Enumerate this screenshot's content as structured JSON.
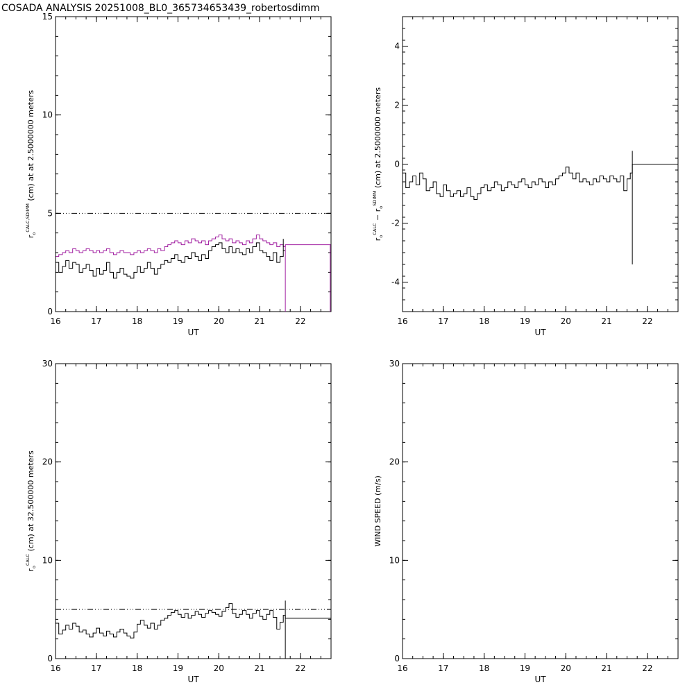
{
  "header": {
    "title": "COSADA ANALYSIS 20251008_BL0_365734653439_robertosdimm"
  },
  "colors": {
    "axis": "#000000",
    "series_black": "#000000",
    "series_magenta": "#a01ea0"
  },
  "chart_data": [
    {
      "type": "line",
      "xlabel": "UT",
      "ylabel_parts": {
        "main": "r",
        "sub": "o",
        "sup": "CALC,SDIMM",
        "rest": "(cm)  at  at 2.5000000 meters"
      },
      "xlim": [
        16,
        22.75
      ],
      "ylim": [
        0,
        15
      ],
      "xticks": [
        16,
        17,
        18,
        19,
        20,
        21,
        22
      ],
      "yticks": [
        0,
        5,
        10,
        15
      ],
      "reference_line": 5,
      "series": [
        {
          "color": "#a01ea0",
          "step": true,
          "x": [
            16.0,
            16.08,
            16.17,
            16.25,
            16.33,
            16.42,
            16.5,
            16.58,
            16.67,
            16.75,
            16.83,
            16.92,
            17.0,
            17.08,
            17.17,
            17.25,
            17.33,
            17.42,
            17.5,
            17.58,
            17.67,
            17.75,
            17.83,
            17.92,
            18.0,
            18.08,
            18.17,
            18.25,
            18.33,
            18.42,
            18.5,
            18.58,
            18.67,
            18.75,
            18.83,
            18.92,
            19.0,
            19.08,
            19.17,
            19.25,
            19.33,
            19.42,
            19.5,
            19.58,
            19.67,
            19.75,
            19.83,
            19.92,
            20.0,
            20.08,
            20.17,
            20.25,
            20.33,
            20.42,
            20.5,
            20.58,
            20.67,
            20.75,
            20.83,
            20.92,
            21.0,
            21.08,
            21.17,
            21.25,
            21.33,
            21.42,
            21.5,
            21.58,
            21.63,
            22.73
          ],
          "y": [
            2.8,
            2.9,
            3.0,
            3.1,
            3.0,
            3.2,
            3.1,
            3.0,
            3.1,
            3.2,
            3.1,
            3.0,
            3.1,
            3.0,
            3.1,
            3.2,
            3.0,
            2.9,
            3.0,
            3.1,
            3.0,
            3.0,
            2.9,
            3.0,
            3.1,
            3.0,
            3.1,
            3.2,
            3.1,
            3.0,
            3.2,
            3.1,
            3.3,
            3.4,
            3.5,
            3.6,
            3.5,
            3.4,
            3.6,
            3.5,
            3.7,
            3.6,
            3.5,
            3.6,
            3.4,
            3.6,
            3.7,
            3.8,
            3.9,
            3.7,
            3.6,
            3.7,
            3.5,
            3.6,
            3.5,
            3.4,
            3.6,
            3.5,
            3.7,
            3.9,
            3.7,
            3.6,
            3.5,
            3.4,
            3.5,
            3.3,
            3.4,
            3.3,
            3.4,
            3.4
          ]
        },
        {
          "color": "#000000",
          "step": true,
          "x": [
            16.0,
            16.08,
            16.17,
            16.25,
            16.33,
            16.42,
            16.5,
            16.58,
            16.67,
            16.75,
            16.83,
            16.92,
            17.0,
            17.08,
            17.17,
            17.25,
            17.33,
            17.42,
            17.5,
            17.58,
            17.67,
            17.75,
            17.83,
            17.92,
            18.0,
            18.08,
            18.17,
            18.25,
            18.33,
            18.42,
            18.5,
            18.58,
            18.67,
            18.75,
            18.83,
            18.92,
            19.0,
            19.08,
            19.17,
            19.25,
            19.33,
            19.42,
            19.5,
            19.58,
            19.67,
            19.75,
            19.83,
            19.92,
            20.0,
            20.08,
            20.17,
            20.25,
            20.33,
            20.42,
            20.5,
            20.58,
            20.67,
            20.75,
            20.83,
            20.92,
            21.0,
            21.08,
            21.17,
            21.25,
            21.33,
            21.42,
            21.5,
            21.58
          ],
          "y": [
            2.5,
            2.0,
            2.3,
            2.6,
            2.2,
            2.5,
            2.4,
            2.0,
            2.2,
            2.4,
            2.1,
            1.8,
            2.2,
            1.9,
            2.1,
            2.5,
            2.0,
            1.7,
            2.0,
            2.2,
            1.9,
            1.8,
            1.7,
            2.0,
            2.3,
            2.0,
            2.2,
            2.5,
            2.2,
            1.9,
            2.2,
            2.4,
            2.6,
            2.5,
            2.7,
            2.9,
            2.6,
            2.5,
            2.8,
            2.7,
            3.0,
            2.8,
            2.6,
            2.9,
            2.7,
            3.1,
            3.3,
            3.4,
            3.5,
            3.2,
            3.0,
            3.3,
            3.0,
            3.2,
            3.0,
            2.9,
            3.2,
            3.0,
            3.3,
            3.5,
            3.1,
            3.0,
            2.8,
            2.6,
            3.0,
            2.5,
            2.8,
            3.1
          ]
        }
      ]
    },
    {
      "type": "line",
      "xlabel": "UT",
      "ylabel_parts": {
        "main": "r",
        "sub": "o",
        "sup": "CALC",
        "dash": "− r",
        "sub2": "o",
        "sup2": "SDIMM",
        "rest": "(cm)  at 2.5000000 meters"
      },
      "xlim": [
        16,
        22.75
      ],
      "ylim": [
        -5,
        5
      ],
      "xticks": [
        16,
        17,
        18,
        19,
        20,
        21,
        22
      ],
      "yticks": [
        -4,
        -2,
        0,
        2,
        4
      ],
      "series": [
        {
          "color": "#000000",
          "step": true,
          "x": [
            16.0,
            16.08,
            16.17,
            16.25,
            16.33,
            16.42,
            16.5,
            16.58,
            16.67,
            16.75,
            16.83,
            16.92,
            17.0,
            17.08,
            17.17,
            17.25,
            17.33,
            17.42,
            17.5,
            17.58,
            17.67,
            17.75,
            17.83,
            17.92,
            18.0,
            18.08,
            18.17,
            18.25,
            18.33,
            18.42,
            18.5,
            18.58,
            18.67,
            18.75,
            18.83,
            18.92,
            19.0,
            19.08,
            19.17,
            19.25,
            19.33,
            19.42,
            19.5,
            19.58,
            19.67,
            19.75,
            19.83,
            19.92,
            20.0,
            20.08,
            20.17,
            20.25,
            20.33,
            20.42,
            20.5,
            20.58,
            20.67,
            20.75,
            20.83,
            20.92,
            21.0,
            21.08,
            21.17,
            21.25,
            21.33,
            21.42,
            21.5,
            21.58,
            21.63,
            22.73
          ],
          "y": [
            -0.3,
            -0.8,
            -0.6,
            -0.4,
            -0.7,
            -0.3,
            -0.5,
            -0.9,
            -0.8,
            -0.6,
            -1.0,
            -1.1,
            -0.7,
            -0.9,
            -1.1,
            -1.0,
            -0.9,
            -1.1,
            -1.0,
            -0.8,
            -1.1,
            -1.2,
            -1.0,
            -0.8,
            -0.7,
            -0.9,
            -0.8,
            -0.6,
            -0.7,
            -0.9,
            -0.8,
            -0.6,
            -0.7,
            -0.8,
            -0.6,
            -0.5,
            -0.7,
            -0.8,
            -0.6,
            -0.7,
            -0.5,
            -0.6,
            -0.8,
            -0.6,
            -0.7,
            -0.5,
            -0.4,
            -0.3,
            -0.1,
            -0.3,
            -0.5,
            -0.3,
            -0.6,
            -0.5,
            -0.6,
            -0.7,
            -0.5,
            -0.6,
            -0.4,
            -0.5,
            -0.6,
            -0.4,
            -0.5,
            -0.6,
            -0.4,
            -0.9,
            -0.5,
            -0.3,
            0.0,
            0.0
          ]
        }
      ]
    },
    {
      "type": "line",
      "xlabel": "UT",
      "ylabel_parts": {
        "main": "r",
        "sub": "o",
        "sup": "CALC",
        "rest": "(cm)  at 32.500000 meters"
      },
      "xlim": [
        16,
        22.75
      ],
      "ylim": [
        0,
        30
      ],
      "xticks": [
        16,
        17,
        18,
        19,
        20,
        21,
        22
      ],
      "yticks": [
        0,
        10,
        20,
        30
      ],
      "reference_line": 5,
      "series": [
        {
          "color": "#000000",
          "step": true,
          "x": [
            16.0,
            16.08,
            16.17,
            16.25,
            16.33,
            16.42,
            16.5,
            16.58,
            16.67,
            16.75,
            16.83,
            16.92,
            17.0,
            17.08,
            17.17,
            17.25,
            17.33,
            17.42,
            17.5,
            17.58,
            17.67,
            17.75,
            17.83,
            17.92,
            18.0,
            18.08,
            18.17,
            18.25,
            18.33,
            18.42,
            18.5,
            18.58,
            18.67,
            18.75,
            18.83,
            18.92,
            19.0,
            19.08,
            19.17,
            19.25,
            19.33,
            19.42,
            19.5,
            19.58,
            19.67,
            19.75,
            19.83,
            19.92,
            20.0,
            20.08,
            20.17,
            20.25,
            20.33,
            20.42,
            20.5,
            20.58,
            20.67,
            20.75,
            20.83,
            20.92,
            21.0,
            21.08,
            21.17,
            21.25,
            21.33,
            21.42,
            21.5,
            21.58,
            21.63,
            22.73
          ],
          "y": [
            3.6,
            2.5,
            2.9,
            3.4,
            3.0,
            3.6,
            3.3,
            2.7,
            2.9,
            2.5,
            2.2,
            2.6,
            3.1,
            2.6,
            2.3,
            2.8,
            2.5,
            2.2,
            2.7,
            3.0,
            2.6,
            2.3,
            2.1,
            2.7,
            3.5,
            3.9,
            3.4,
            3.1,
            3.6,
            3.0,
            3.4,
            3.9,
            4.1,
            4.4,
            4.7,
            4.9,
            4.5,
            4.2,
            4.6,
            4.1,
            4.4,
            4.8,
            4.5,
            4.2,
            4.6,
            4.9,
            4.7,
            4.5,
            4.3,
            4.8,
            5.2,
            5.6,
            4.6,
            4.2,
            4.5,
            4.9,
            4.5,
            4.1,
            4.6,
            4.9,
            4.3,
            4.0,
            4.5,
            4.9,
            4.2,
            3.0,
            3.7,
            4.4,
            4.1,
            4.1
          ]
        }
      ]
    },
    {
      "type": "line",
      "xlabel": "UT",
      "ylabel": "WIND SPEED (m/s)",
      "xlim": [
        16,
        22.75
      ],
      "ylim": [
        0,
        30
      ],
      "xticks": [
        16,
        17,
        18,
        19,
        20,
        21,
        22
      ],
      "yticks": [
        0,
        10,
        20,
        30
      ],
      "series": []
    }
  ]
}
